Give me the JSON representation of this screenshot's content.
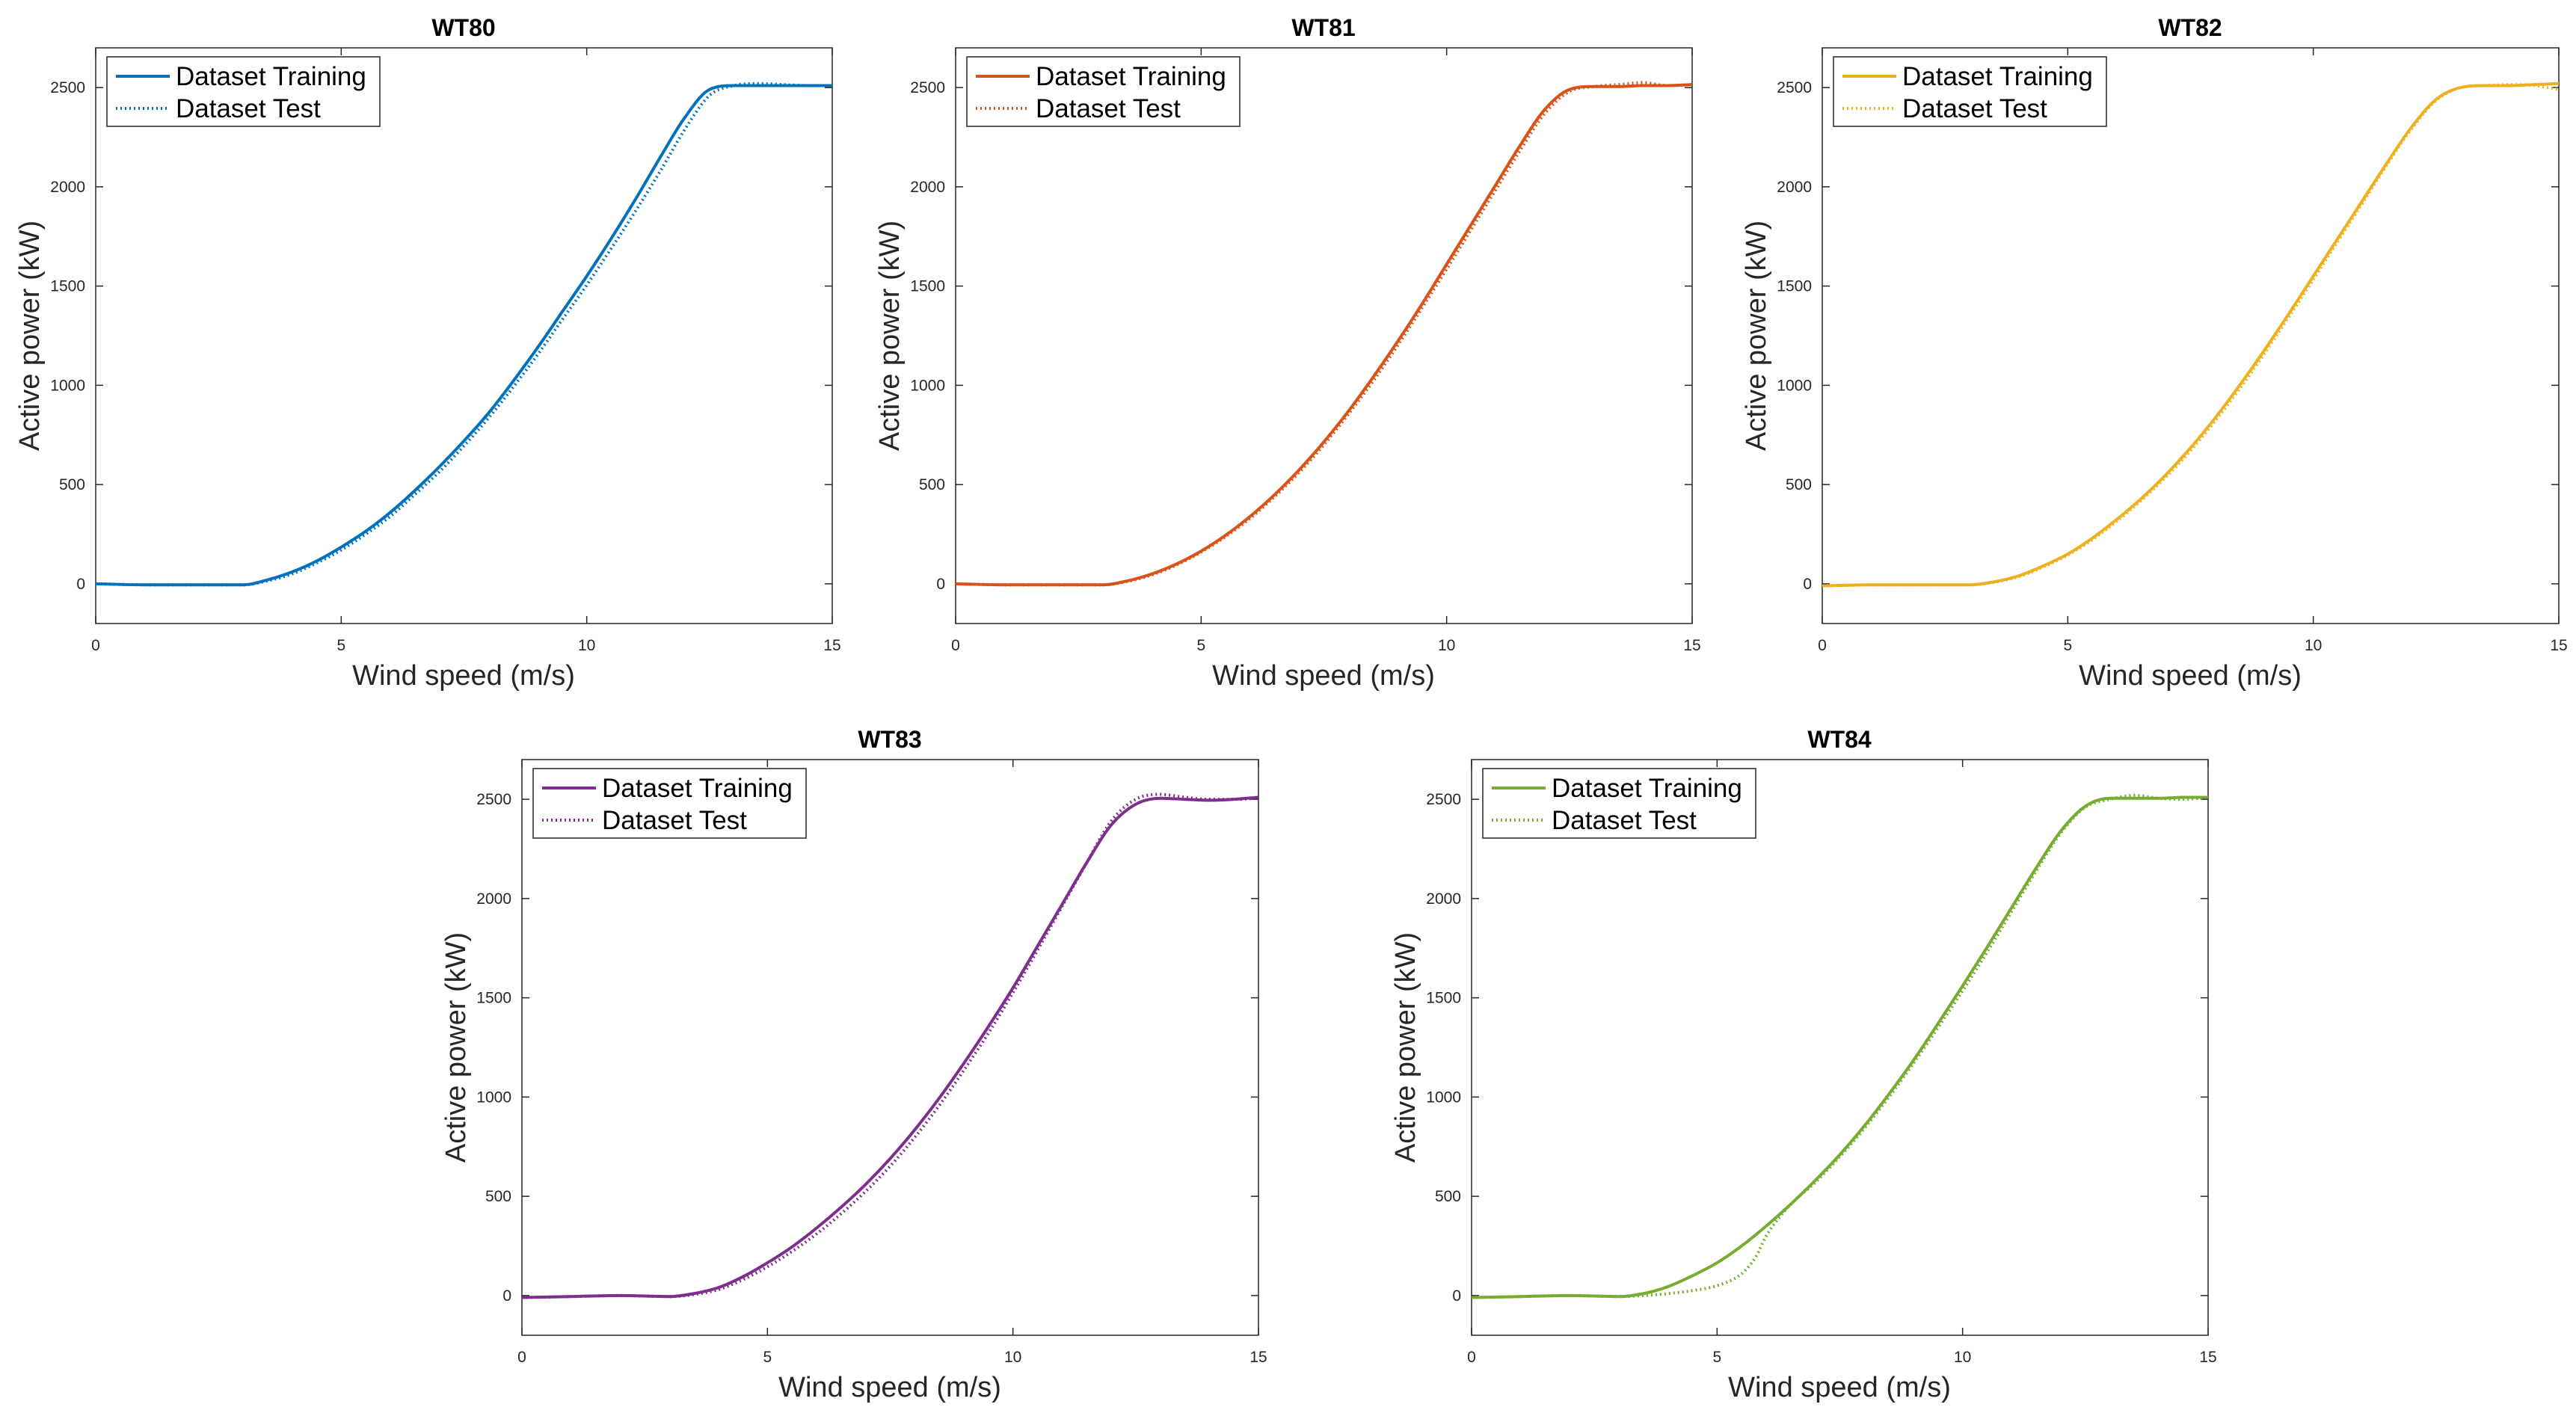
{
  "chart_data": [
    {
      "type": "line",
      "title": "WT80",
      "xlabel": "Wind speed (m/s)",
      "ylabel": "Active power (kW)",
      "xlim": [
        0,
        15
      ],
      "ylim": [
        -200,
        2700
      ],
      "xticks": [
        0,
        5,
        10,
        15
      ],
      "yticks": [
        0,
        500,
        1000,
        1500,
        2000,
        2500
      ],
      "grid": false,
      "legend_position": "top-left",
      "color": "#0072BD",
      "series": [
        {
          "name": "Dataset Training",
          "style": "solid",
          "x": [
            0,
            1,
            2,
            3,
            3.5,
            4,
            4.5,
            5,
            5.5,
            6,
            6.5,
            7,
            7.5,
            8,
            8.5,
            9,
            9.5,
            10,
            10.5,
            11,
            11.5,
            12,
            12.5,
            13,
            13.5,
            14,
            14.5,
            15
          ],
          "values": [
            0,
            -5,
            -5,
            -5,
            20,
            60,
            115,
            185,
            265,
            360,
            470,
            590,
            720,
            860,
            1020,
            1190,
            1370,
            1550,
            1740,
            1940,
            2150,
            2350,
            2490,
            2510,
            2510,
            2510,
            2510,
            2510
          ]
        },
        {
          "name": "Dataset Test",
          "style": "dotted",
          "x": [
            0,
            1,
            2,
            3,
            3.5,
            4,
            4.5,
            5,
            5.5,
            6,
            6.5,
            7,
            7.5,
            8,
            8.5,
            9,
            9.5,
            10,
            10.5,
            11,
            11.5,
            12,
            12.5,
            13,
            13.5,
            14,
            14.5,
            15
          ],
          "values": [
            0,
            -5,
            -5,
            -5,
            15,
            50,
            105,
            170,
            250,
            340,
            450,
            565,
            695,
            835,
            990,
            1155,
            1330,
            1505,
            1690,
            1880,
            2080,
            2290,
            2460,
            2510,
            2520,
            2515,
            2510,
            2510
          ]
        }
      ]
    },
    {
      "type": "line",
      "title": "WT81",
      "xlabel": "Wind speed (m/s)",
      "ylabel": "Active power (kW)",
      "xlim": [
        0,
        15
      ],
      "ylim": [
        -200,
        2700
      ],
      "xticks": [
        0,
        5,
        10,
        15
      ],
      "yticks": [
        0,
        500,
        1000,
        1500,
        2000,
        2500
      ],
      "grid": false,
      "legend_position": "top-left",
      "color": "#D95319",
      "series": [
        {
          "name": "Dataset Training",
          "style": "solid",
          "x": [
            0,
            1,
            2,
            3,
            3.5,
            4,
            4.5,
            5,
            5.5,
            6,
            6.5,
            7,
            7.5,
            8,
            8.5,
            9,
            9.5,
            10,
            10.5,
            11,
            11.5,
            12,
            12.5,
            13,
            13.5,
            14,
            14.5,
            15
          ],
          "values": [
            0,
            -5,
            -5,
            -5,
            15,
            50,
            100,
            165,
            245,
            340,
            450,
            575,
            715,
            870,
            1040,
            1220,
            1410,
            1610,
            1810,
            2010,
            2210,
            2390,
            2490,
            2505,
            2505,
            2510,
            2510,
            2515
          ]
        },
        {
          "name": "Dataset Test",
          "style": "dotted",
          "x": [
            0,
            1,
            2,
            3,
            3.5,
            4,
            4.5,
            5,
            5.5,
            6,
            6.5,
            7,
            7.5,
            8,
            8.5,
            9,
            9.5,
            10,
            10.5,
            11,
            11.5,
            12,
            12.5,
            13,
            13.5,
            14,
            14.5,
            15
          ],
          "values": [
            0,
            -5,
            -5,
            -5,
            12,
            45,
            95,
            160,
            238,
            330,
            440,
            562,
            700,
            855,
            1020,
            1200,
            1390,
            1585,
            1785,
            1985,
            2185,
            2370,
            2480,
            2505,
            2515,
            2525,
            2510,
            2515
          ]
        }
      ]
    },
    {
      "type": "line",
      "title": "WT82",
      "xlabel": "Wind speed (m/s)",
      "ylabel": "Active power (kW)",
      "xlim": [
        0,
        15
      ],
      "ylim": [
        -200,
        2700
      ],
      "xticks": [
        0,
        5,
        10,
        15
      ],
      "yticks": [
        0,
        500,
        1000,
        1500,
        2000,
        2500
      ],
      "grid": false,
      "legend_position": "top-left",
      "color": "#EDB120",
      "series": [
        {
          "name": "Dataset Training",
          "style": "solid",
          "x": [
            0,
            1,
            2,
            3,
            3.5,
            4,
            4.5,
            5,
            5.5,
            6,
            6.5,
            7,
            7.5,
            8,
            8.5,
            9,
            9.5,
            10,
            10.5,
            11,
            11.5,
            12,
            12.5,
            13,
            13.5,
            14,
            14.5,
            15
          ],
          "values": [
            -10,
            -5,
            -5,
            -5,
            10,
            40,
            90,
            150,
            230,
            325,
            430,
            550,
            685,
            835,
            1000,
            1175,
            1360,
            1550,
            1740,
            1930,
            2120,
            2300,
            2440,
            2500,
            2510,
            2510,
            2515,
            2520
          ]
        },
        {
          "name": "Dataset Test",
          "style": "dotted",
          "x": [
            0,
            1,
            2,
            3,
            3.5,
            4,
            4.5,
            5,
            5.5,
            6,
            6.5,
            7,
            7.5,
            8,
            8.5,
            9,
            9.5,
            10,
            10.5,
            11,
            11.5,
            12,
            12.5,
            13,
            13.5,
            14,
            14.5,
            15
          ],
          "values": [
            -10,
            -5,
            -5,
            -5,
            8,
            36,
            85,
            145,
            222,
            315,
            420,
            538,
            670,
            820,
            982,
            1158,
            1343,
            1533,
            1725,
            1917,
            2110,
            2292,
            2435,
            2500,
            2510,
            2515,
            2510,
            2490
          ]
        }
      ]
    },
    {
      "type": "line",
      "title": "WT83",
      "xlabel": "Wind speed (m/s)",
      "ylabel": "Active power (kW)",
      "xlim": [
        0,
        15
      ],
      "ylim": [
        -200,
        2700
      ],
      "xticks": [
        0,
        5,
        10,
        15
      ],
      "yticks": [
        0,
        500,
        1000,
        1500,
        2000,
        2500
      ],
      "grid": false,
      "legend_position": "top-left",
      "color": "#7E2F8E",
      "series": [
        {
          "name": "Dataset Training",
          "style": "solid",
          "x": [
            0,
            1,
            2,
            3,
            3.5,
            4,
            4.5,
            5,
            5.5,
            6,
            6.5,
            7,
            7.5,
            8,
            8.5,
            9,
            9.5,
            10,
            10.5,
            11,
            11.5,
            12,
            12.5,
            13,
            13.5,
            14,
            14.5,
            15
          ],
          "values": [
            -10,
            -5,
            0,
            -5,
            10,
            40,
            95,
            165,
            245,
            340,
            445,
            560,
            690,
            835,
            995,
            1170,
            1355,
            1550,
            1760,
            1970,
            2180,
            2370,
            2475,
            2505,
            2500,
            2495,
            2500,
            2510
          ]
        },
        {
          "name": "Dataset Test",
          "style": "dotted",
          "x": [
            0,
            1,
            2,
            3,
            3.5,
            4,
            4.5,
            5,
            5.5,
            6,
            6.5,
            7,
            7.5,
            8,
            8.5,
            9,
            9.5,
            10,
            10.5,
            11,
            11.5,
            12,
            12.5,
            13,
            13.5,
            14,
            14.5,
            15
          ],
          "values": [
            -10,
            -5,
            0,
            -5,
            5,
            30,
            80,
            145,
            222,
            310,
            412,
            525,
            652,
            797,
            958,
            1135,
            1322,
            1525,
            1740,
            1960,
            2180,
            2390,
            2500,
            2525,
            2510,
            2500,
            2500,
            2505
          ]
        }
      ]
    },
    {
      "type": "line",
      "title": "WT84",
      "xlabel": "Wind speed (m/s)",
      "ylabel": "Active power (kW)",
      "xlim": [
        0,
        15
      ],
      "ylim": [
        -200,
        2700
      ],
      "xticks": [
        0,
        5,
        10,
        15
      ],
      "yticks": [
        0,
        500,
        1000,
        1500,
        2000,
        2500
      ],
      "grid": false,
      "legend_position": "top-left",
      "color": "#77AC30",
      "series": [
        {
          "name": "Dataset Training",
          "style": "solid",
          "x": [
            0,
            1,
            2,
            3,
            3.5,
            4,
            4.5,
            5,
            5.5,
            6,
            6.5,
            7,
            7.5,
            8,
            8.5,
            9,
            9.5,
            10,
            10.5,
            11,
            11.5,
            12,
            12.5,
            13,
            13.5,
            14,
            14.5,
            15
          ],
          "values": [
            -10,
            -5,
            0,
            -5,
            10,
            45,
            100,
            165,
            250,
            350,
            460,
            580,
            710,
            855,
            1015,
            1185,
            1370,
            1560,
            1755,
            1955,
            2155,
            2340,
            2465,
            2505,
            2505,
            2505,
            2510,
            2510
          ]
        },
        {
          "name": "Dataset Test",
          "style": "dotted",
          "x": [
            0,
            1,
            2,
            3,
            3.5,
            4,
            4.5,
            5,
            5.5,
            5.8,
            6,
            6.5,
            7,
            7.5,
            8,
            8.5,
            9,
            9.5,
            10,
            10.5,
            11,
            11.5,
            12,
            12.5,
            13,
            13.5,
            14,
            14.5,
            15
          ],
          "values": [
            -10,
            -5,
            0,
            -5,
            0,
            10,
            25,
            50,
            110,
            200,
            300,
            460,
            570,
            700,
            842,
            1000,
            1170,
            1350,
            1535,
            1730,
            1935,
            2140,
            2330,
            2460,
            2500,
            2520,
            2505,
            2500,
            2510
          ]
        }
      ]
    }
  ]
}
